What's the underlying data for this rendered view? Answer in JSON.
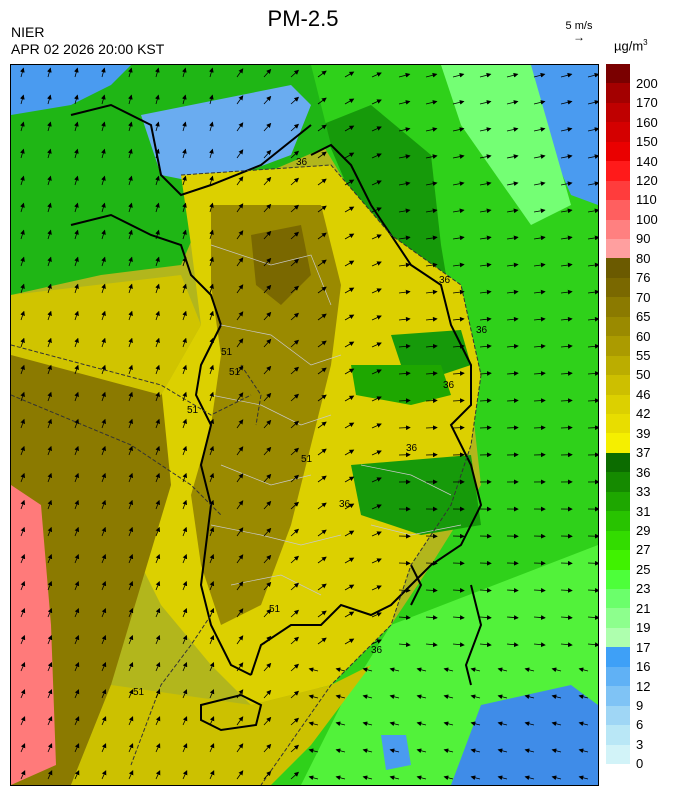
{
  "header": {
    "title": "PM-2.5",
    "agency": "NIER",
    "timestamp": "APR 02 2026 20:00 KST",
    "wind_reference": "5 m/s",
    "unit_base": "µg/m",
    "unit_exp": "3"
  },
  "legend": {
    "levels": [
      "200",
      "170",
      "160",
      "150",
      "140",
      "120",
      "110",
      "100",
      "90",
      "80",
      "76",
      "70",
      "65",
      "60",
      "55",
      "50",
      "46",
      "42",
      "39",
      "37",
      "36",
      "33",
      "31",
      "29",
      "27",
      "25",
      "23",
      "21",
      "19",
      "17",
      "16",
      "12",
      "9",
      "6",
      "3",
      "0"
    ],
    "colors": [
      "#7a0000",
      "#a30000",
      "#bf0000",
      "#d40000",
      "#ea0000",
      "#ff1a1a",
      "#ff3c3c",
      "#ff5f5f",
      "#ff8080",
      "#ff9f9f",
      "#6b5a00",
      "#7a6800",
      "#8b7a00",
      "#9a8a00",
      "#ab9b00",
      "#bbad00",
      "#cdbf00",
      "#dcd000",
      "#e8dd00",
      "#f5ef00",
      "#0c6c00",
      "#158a00",
      "#1ea700",
      "#28c300",
      "#33dc00",
      "#40f200",
      "#4dff3a",
      "#6bff6b",
      "#8dff8d",
      "#aeffae",
      "#3ea0f7",
      "#60b1f5",
      "#7fc3f5",
      "#9fd6f5",
      "#b9e7f6",
      "#d2f3f8"
    ]
  },
  "map": {
    "contour_labels": [
      "36",
      "36",
      "36",
      "36",
      "36",
      "36",
      "36",
      "51",
      "51",
      "51",
      "51",
      "51",
      "51"
    ]
  }
}
